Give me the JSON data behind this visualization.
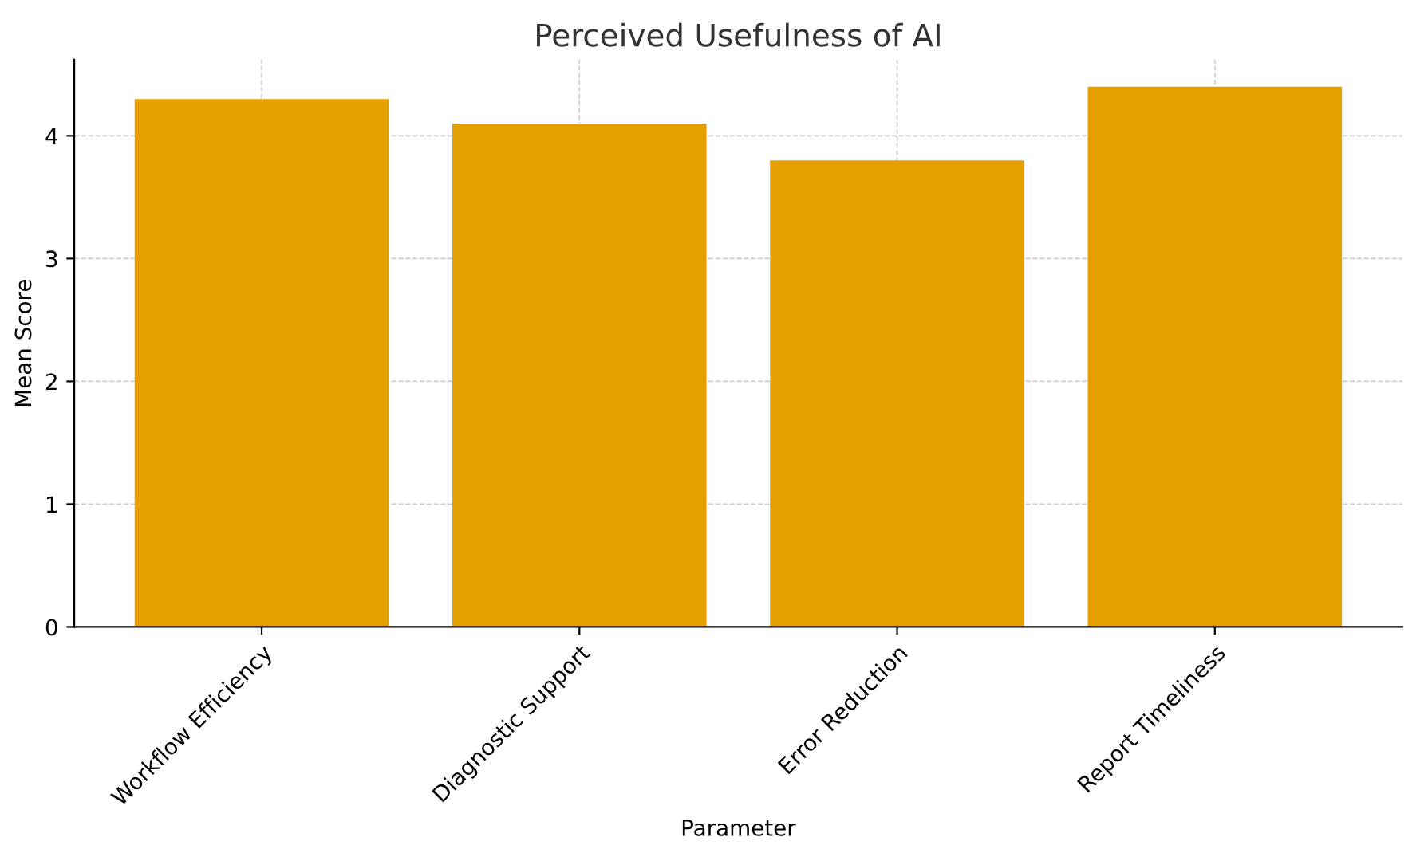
{
  "chart_data": {
    "type": "bar",
    "title": "Perceived Usefulness of AI",
    "xlabel": "Parameter",
    "ylabel": "Mean Score",
    "categories": [
      "Workflow Efficiency",
      "Diagnostic Support",
      "Error Reduction",
      "Report Timeliness"
    ],
    "values": [
      4.3,
      4.1,
      3.8,
      4.4
    ],
    "color": "#e3a000",
    "ylim": [
      0,
      4.62
    ],
    "yticks": [
      0,
      1,
      2,
      3,
      4
    ],
    "grid": true
  }
}
